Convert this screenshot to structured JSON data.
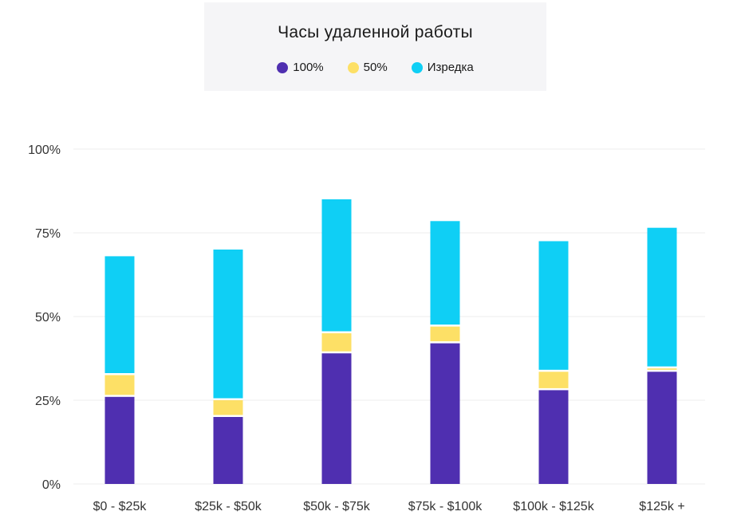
{
  "legend": {
    "title": "Часы удаленной работы",
    "items": [
      {
        "label": "100%",
        "color": "#4f2fb0"
      },
      {
        "label": "50%",
        "color": "#fde066"
      },
      {
        "label": "Изредка",
        "color": "#0fcff5"
      }
    ]
  },
  "chart_data": {
    "type": "bar",
    "stacked": true,
    "title": "Часы удаленной работы",
    "categories": [
      "$0 - $25k",
      "$25k - $50k",
      "$50k - $75k",
      "$75k - $100k",
      "$100k - $125k",
      "$125k +"
    ],
    "series": [
      {
        "name": "100%",
        "color": "#4f2fb0",
        "values": [
          26,
          20,
          39,
          42,
          28,
          33.5
        ]
      },
      {
        "name": "50%",
        "color": "#fde066",
        "values": [
          6.5,
          5,
          6,
          5,
          5.5,
          1
        ]
      },
      {
        "name": "Изредка",
        "color": "#0fcff5",
        "values": [
          35.5,
          45,
          40,
          31.5,
          39,
          42
        ]
      }
    ],
    "ylim": [
      0,
      100
    ],
    "yticks": [
      "0%",
      "25%",
      "50%",
      "75%",
      "100%"
    ],
    "ytick_values": [
      0,
      25,
      50,
      75,
      100
    ],
    "grid": true,
    "legend_position": "top-center"
  }
}
